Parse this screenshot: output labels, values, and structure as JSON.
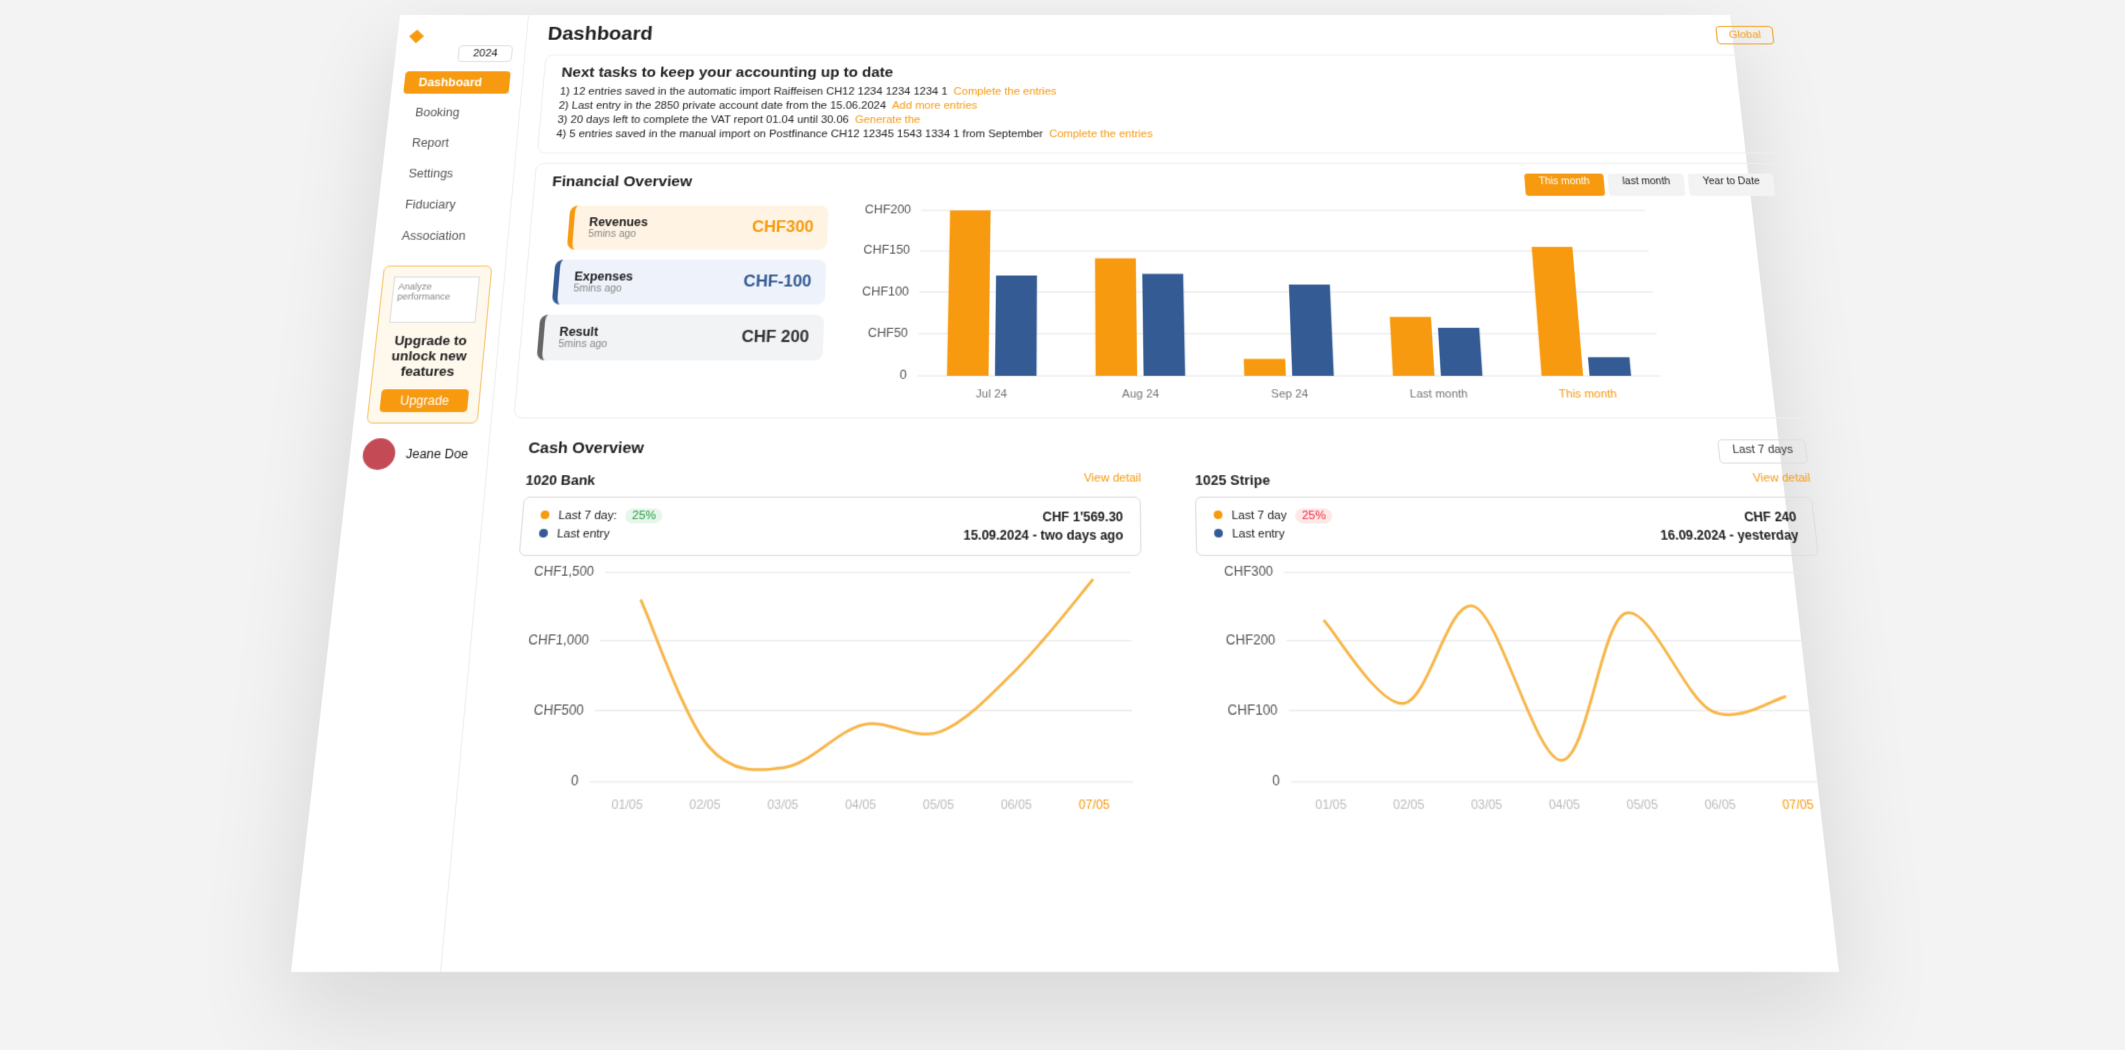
{
  "sidebar": {
    "year": "2024",
    "nav": [
      "Dashboard",
      "Booking",
      "Report",
      "Settings",
      "Fiduciary",
      "Association"
    ],
    "upgrade": {
      "caption": "Analyze performance",
      "title": "Upgrade to unlock new features",
      "button": "Upgrade"
    },
    "user": "Jeane Doe"
  },
  "header": {
    "title": "Dashboard",
    "scope": "Global"
  },
  "tasks": {
    "title": "Next tasks to keep your accounting up to date",
    "items": [
      {
        "text": "1) 12 entries saved in the automatic import Raiffeisen CH12 1234 1234 1234 1",
        "link": "Complete the entries"
      },
      {
        "text": "2) Last entry in the 2850 private account date from the 15.06.2024",
        "link": "Add more entries"
      },
      {
        "text": "3) 20 days left to complete the VAT report 01.04 until 30.06",
        "link": "Generate the"
      },
      {
        "text": "4) 5 entries saved in the manual import on Postfinance CH12 12345 1543 1334 1 from September",
        "link": "Complete the entries"
      }
    ]
  },
  "financial_overview": {
    "title": "Financial Overview",
    "tabs": [
      "This month",
      "last month",
      "Year to Date"
    ],
    "cards": [
      {
        "label": "Revenues",
        "time": "5mins ago",
        "amount": "CHF300"
      },
      {
        "label": "Expenses",
        "time": "5mins ago",
        "amount": "CHF-100"
      },
      {
        "label": "Result",
        "time": "5mins ago",
        "amount": "CHF 200"
      }
    ]
  },
  "cash_overview": {
    "title": "Cash Overview",
    "period": "Last 7 days",
    "accounts": [
      {
        "name": "1020 Bank",
        "link": "View detail",
        "period_label": "Last 7 day:",
        "change": "25%",
        "amount": "CHF 1'569.30",
        "entry_label": "Last entry",
        "entry": "15.09.2024 - two days ago"
      },
      {
        "name": "1025 Stripe",
        "link": "View detail",
        "period_label": "Last 7 day",
        "change": "25%",
        "amount": "CHF 240",
        "entry_label": "Last entry",
        "entry": "16.09.2024 - yesterday"
      }
    ]
  },
  "chart_data": [
    {
      "type": "bar",
      "categories": [
        "Jul 24",
        "Aug 24",
        "Sep 24",
        "Last month",
        "This month"
      ],
      "series": [
        {
          "color": "#f79a10",
          "values": [
            200,
            141,
            20,
            70,
            155
          ]
        },
        {
          "color": "#345b94",
          "values": [
            120,
            122,
            109,
            57,
            22
          ]
        }
      ],
      "ylim": [
        0,
        200
      ],
      "yticks": [
        0,
        {
          "value": 50,
          "label": "CHF50"
        },
        {
          "value": 100,
          "label": "CHF100"
        },
        {
          "value": 150,
          "label": "CHF150"
        },
        {
          "value": 200,
          "label": "CHF200"
        }
      ],
      "grid": true
    },
    {
      "type": "line",
      "categories": [
        "01/05",
        "02/05",
        "03/05",
        "04/05",
        "05/05",
        "06/05",
        "07/05"
      ],
      "values": [
        1300,
        250,
        100,
        400,
        350,
        800,
        1450
      ],
      "color": "#f7b547",
      "ylim": [
        0,
        1500
      ],
      "yticks": [
        0,
        {
          "value": 500,
          "label": "CHF500"
        },
        {
          "value": 1000,
          "label": "CHF1,000"
        },
        {
          "value": 1500,
          "label": "CHF1,500"
        }
      ],
      "grid": true
    },
    {
      "type": "line",
      "categories": [
        "01/05",
        "02/05",
        "03/05",
        "04/05",
        "05/05",
        "06/05",
        "07/05"
      ],
      "values": [
        230,
        110,
        250,
        30,
        240,
        100,
        120
      ],
      "color": "#f7b547",
      "ylim": [
        0,
        300
      ],
      "yticks": [
        0,
        {
          "value": 100,
          "label": "CHF100"
        },
        {
          "value": 200,
          "label": "CHF200"
        },
        {
          "value": 300,
          "label": "CHF300"
        }
      ],
      "grid": true
    }
  ]
}
